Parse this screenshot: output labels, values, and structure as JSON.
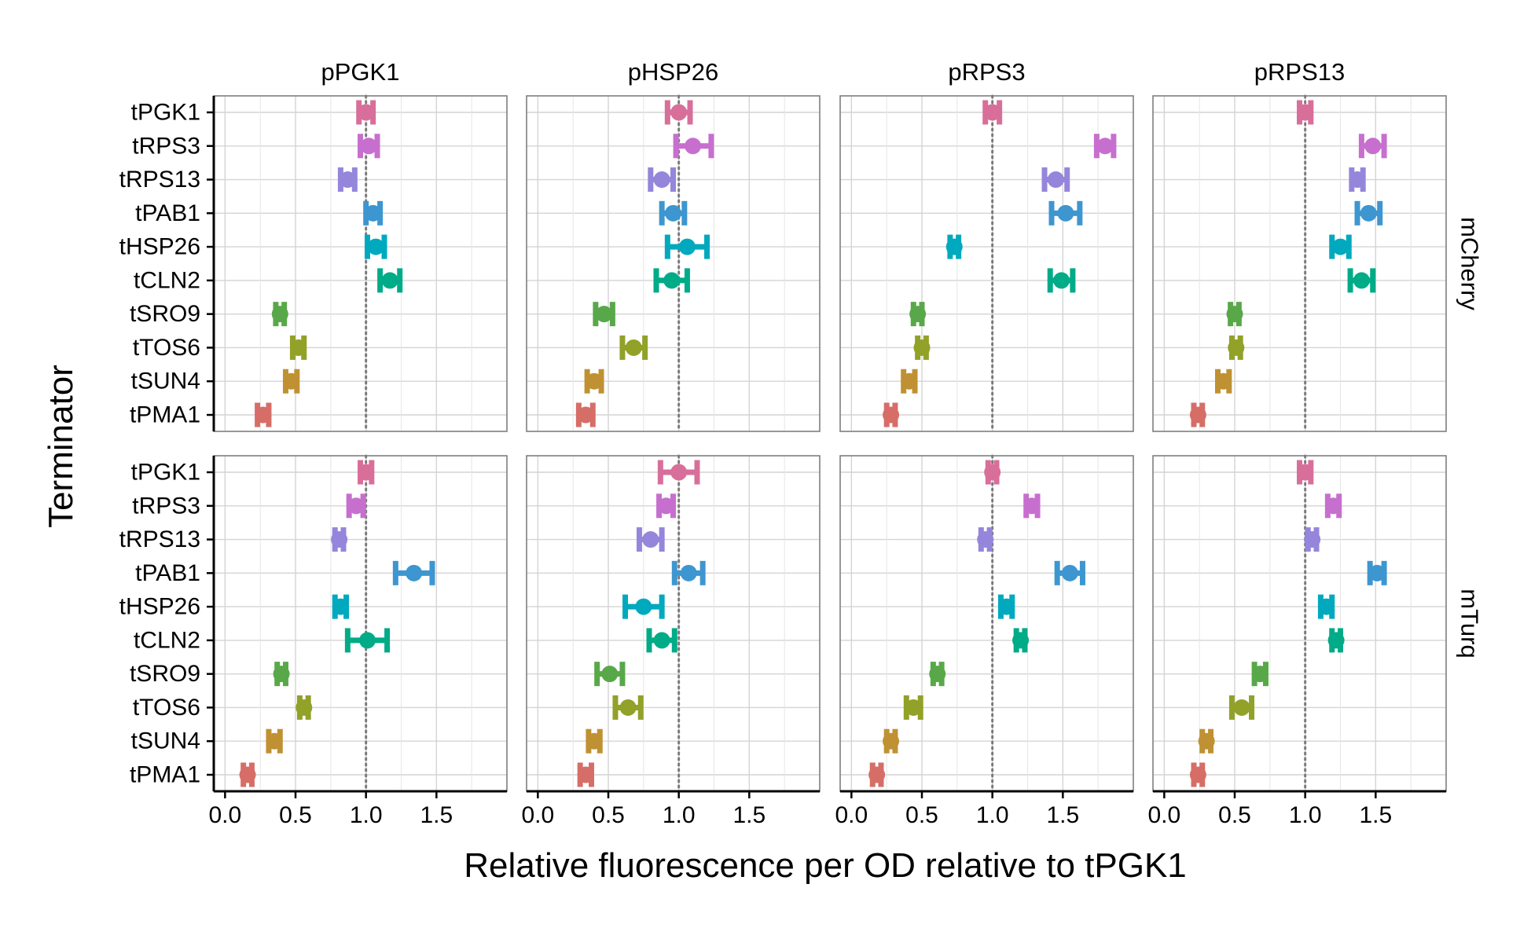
{
  "chart_data": {
    "type": "scatter",
    "xlabel": "Relative fluorescence per OD relative to tPGK1",
    "ylabel": "Terminator",
    "xlim": [
      -0.08,
      2.0
    ],
    "x_ticks": [
      0.0,
      0.5,
      1.0,
      1.5
    ],
    "x_tick_labels": [
      "0.0",
      "0.5",
      "1.0",
      "1.5"
    ],
    "reference_line_x": 1.0,
    "grid": true,
    "legend": "none",
    "terminators": [
      "tPGK1",
      "tRPS3",
      "tRPS13",
      "tPAB1",
      "tHSP26",
      "tCLN2",
      "tSRO9",
      "tTOS6",
      "tSUN4",
      "tPMA1"
    ],
    "terminator_colors": [
      "#D86F9A",
      "#C76FCE",
      "#9586DB",
      "#3D96D0",
      "#00A9BE",
      "#00AB87",
      "#58A84A",
      "#92A128",
      "#C09133",
      "#D66E67"
    ],
    "promoters": [
      "pPGK1",
      "pHSP26",
      "pRPS3",
      "pRPS13"
    ],
    "reporters": [
      "mCherry",
      "mTurq"
    ],
    "panels": {
      "mCherry": {
        "pPGK1": {
          "mean": [
            1.0,
            1.02,
            0.87,
            1.05,
            1.07,
            1.17,
            0.39,
            0.52,
            0.47,
            0.27
          ],
          "low": [
            0.95,
            0.96,
            0.82,
            1.0,
            1.01,
            1.1,
            0.36,
            0.48,
            0.43,
            0.23
          ],
          "high": [
            1.05,
            1.08,
            0.92,
            1.1,
            1.13,
            1.24,
            0.42,
            0.56,
            0.51,
            0.31
          ]
        },
        "pHSP26": {
          "mean": [
            1.0,
            1.1,
            0.88,
            0.96,
            1.06,
            0.95,
            0.47,
            0.68,
            0.4,
            0.34
          ],
          "low": [
            0.92,
            0.98,
            0.8,
            0.88,
            0.92,
            0.84,
            0.41,
            0.6,
            0.35,
            0.29
          ],
          "high": [
            1.08,
            1.23,
            0.96,
            1.04,
            1.2,
            1.06,
            0.53,
            0.76,
            0.45,
            0.39
          ]
        },
        "pRPS3": {
          "mean": [
            1.0,
            1.8,
            1.45,
            1.52,
            0.73,
            1.49,
            0.47,
            0.5,
            0.41,
            0.28
          ],
          "low": [
            0.95,
            1.74,
            1.37,
            1.42,
            0.7,
            1.41,
            0.44,
            0.47,
            0.37,
            0.25
          ],
          "high": [
            1.05,
            1.86,
            1.53,
            1.62,
            0.76,
            1.57,
            0.5,
            0.53,
            0.45,
            0.31
          ]
        },
        "pRPS13": {
          "mean": [
            1.0,
            1.48,
            1.37,
            1.45,
            1.25,
            1.4,
            0.5,
            0.51,
            0.42,
            0.24
          ],
          "low": [
            0.96,
            1.4,
            1.33,
            1.37,
            1.19,
            1.32,
            0.47,
            0.48,
            0.38,
            0.21
          ],
          "high": [
            1.04,
            1.56,
            1.41,
            1.53,
            1.31,
            1.48,
            0.53,
            0.54,
            0.46,
            0.27
          ]
        }
      },
      "mTurq": {
        "pPGK1": {
          "mean": [
            1.0,
            0.93,
            0.81,
            1.34,
            0.82,
            1.01,
            0.4,
            0.56,
            0.35,
            0.16
          ],
          "low": [
            0.96,
            0.88,
            0.78,
            1.21,
            0.78,
            0.87,
            0.37,
            0.53,
            0.31,
            0.13
          ],
          "high": [
            1.04,
            0.98,
            0.84,
            1.47,
            0.86,
            1.15,
            0.43,
            0.59,
            0.39,
            0.19
          ]
        },
        "pHSP26": {
          "mean": [
            1.0,
            0.91,
            0.8,
            1.07,
            0.75,
            0.88,
            0.51,
            0.64,
            0.4,
            0.34
          ],
          "low": [
            0.87,
            0.86,
            0.72,
            0.97,
            0.62,
            0.79,
            0.42,
            0.55,
            0.36,
            0.3
          ],
          "high": [
            1.13,
            0.96,
            0.88,
            1.17,
            0.88,
            0.97,
            0.6,
            0.73,
            0.44,
            0.38
          ]
        },
        "pRPS3": {
          "mean": [
            1.0,
            1.28,
            0.95,
            1.55,
            1.1,
            1.2,
            0.61,
            0.44,
            0.28,
            0.18
          ],
          "low": [
            0.97,
            1.24,
            0.92,
            1.46,
            1.06,
            1.17,
            0.58,
            0.39,
            0.25,
            0.15
          ],
          "high": [
            1.03,
            1.32,
            0.98,
            1.64,
            1.14,
            1.23,
            0.64,
            0.49,
            0.31,
            0.21
          ]
        },
        "pRPS13": {
          "mean": [
            1.0,
            1.2,
            1.05,
            1.51,
            1.15,
            1.22,
            0.68,
            0.55,
            0.3,
            0.24
          ],
          "low": [
            0.96,
            1.16,
            1.02,
            1.46,
            1.11,
            1.19,
            0.64,
            0.48,
            0.27,
            0.21
          ],
          "high": [
            1.04,
            1.24,
            1.08,
            1.56,
            1.19,
            1.25,
            0.72,
            0.62,
            0.33,
            0.27
          ]
        }
      }
    }
  }
}
